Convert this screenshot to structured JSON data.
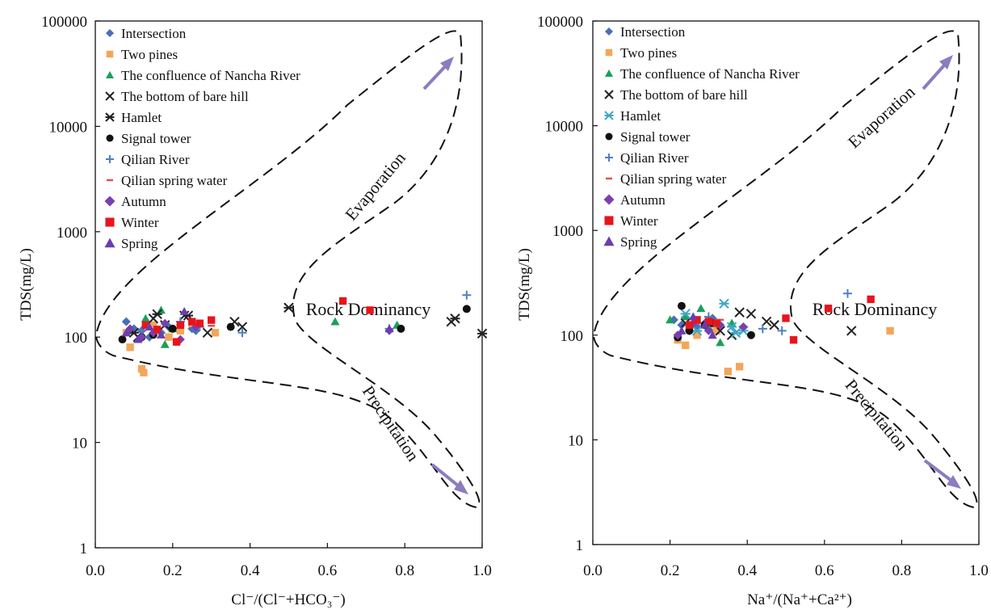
{
  "chart_data": [
    {
      "type": "scatter",
      "xlabel": "Cl⁻/(Cl⁻+HCO₃⁻)",
      "ylabel": "TDS(mg/L)",
      "xlim": [
        0,
        1
      ],
      "ylim": [
        1,
        100000
      ],
      "yscale": "log",
      "x_ticks": [
        "0.0",
        "0.2",
        "0.4",
        "0.6",
        "0.8",
        "1.0"
      ],
      "y_ticks": [
        "1",
        "10",
        "100",
        "1000",
        "10000",
        "100000"
      ],
      "grid": false,
      "legend_position": "top-left",
      "annotations": [
        "Evaporation",
        "Rock Dominancy",
        "Precipitation"
      ],
      "series": [
        {
          "name": "Intersection",
          "marker": "diamond",
          "color": "#4a6fb5",
          "points": [
            [
              0.08,
              140
            ],
            [
              0.1,
              120
            ],
            [
              0.12,
              115
            ],
            [
              0.14,
              100
            ],
            [
              0.17,
              110
            ],
            [
              0.19,
              125
            ],
            [
              0.22,
              130
            ],
            [
              0.25,
              120
            ],
            [
              0.26,
              115
            ]
          ]
        },
        {
          "name": "Two pines",
          "marker": "square",
          "color": "#f3a65a",
          "points": [
            [
              0.08,
              110
            ],
            [
              0.09,
              80
            ],
            [
              0.12,
              50
            ],
            [
              0.125,
              46
            ],
            [
              0.15,
              130
            ],
            [
              0.19,
              100
            ],
            [
              0.25,
              135
            ],
            [
              0.31,
              110
            ],
            [
              0.22,
              115
            ]
          ]
        },
        {
          "name": "The confluence of Nancha River",
          "marker": "triangle",
          "color": "#1aa05a",
          "points": [
            [
              0.09,
              115
            ],
            [
              0.13,
              150
            ],
            [
              0.17,
              180
            ],
            [
              0.18,
              85
            ],
            [
              0.2,
              120
            ],
            [
              0.62,
              140
            ],
            [
              0.78,
              130
            ]
          ]
        },
        {
          "name": "The bottom of bare hill",
          "marker": "x",
          "color": "#222222",
          "points": [
            [
              0.11,
              100
            ],
            [
              0.15,
              150
            ],
            [
              0.18,
              130
            ],
            [
              0.23,
              160
            ],
            [
              0.29,
              110
            ],
            [
              0.36,
              140
            ],
            [
              0.38,
              125
            ],
            [
              0.5,
              190
            ],
            [
              0.92,
              140
            ]
          ]
        },
        {
          "name": "Hamlet",
          "marker": "star",
          "color": "#222222",
          "points": [
            [
              0.1,
              110
            ],
            [
              0.16,
              165
            ],
            [
              0.24,
              160
            ],
            [
              0.5,
              190
            ],
            [
              0.93,
              150
            ],
            [
              1.0,
              108
            ]
          ]
        },
        {
          "name": "Signal tower",
          "marker": "circle",
          "color": "#111111",
          "points": [
            [
              0.07,
              95
            ],
            [
              0.12,
              100
            ],
            [
              0.15,
              105
            ],
            [
              0.2,
              120
            ],
            [
              0.35,
              125
            ],
            [
              0.79,
              120
            ],
            [
              0.96,
              185
            ]
          ]
        },
        {
          "name": "Qilian River",
          "marker": "plus",
          "color": "#4d7fc4",
          "points": [
            [
              0.12,
              115
            ],
            [
              0.22,
              140
            ],
            [
              0.27,
              125
            ],
            [
              0.38,
              110
            ],
            [
              0.76,
              120
            ],
            [
              0.96,
              250
            ]
          ]
        },
        {
          "name": "Qilian spring water",
          "marker": "dash",
          "color": "#e05050",
          "points": [
            [
              0.16,
              120
            ],
            [
              0.3,
              128
            ]
          ]
        },
        {
          "name": "Autumn",
          "marker": "diamond",
          "color": "#7a3fb0",
          "points": [
            [
              0.09,
              120
            ],
            [
              0.12,
              100
            ],
            [
              0.15,
              110
            ],
            [
              0.18,
              135
            ],
            [
              0.22,
              95
            ],
            [
              0.26,
              125
            ],
            [
              0.76,
              115
            ]
          ]
        },
        {
          "name": "Winter",
          "marker": "square",
          "color": "#e8141c",
          "points": [
            [
              0.13,
              130
            ],
            [
              0.16,
              118
            ],
            [
              0.21,
              90
            ],
            [
              0.22,
              130
            ],
            [
              0.25,
              140
            ],
            [
              0.27,
              135
            ],
            [
              0.3,
              145
            ],
            [
              0.64,
              220
            ],
            [
              0.71,
              180
            ]
          ]
        },
        {
          "name": "Spring",
          "marker": "triangle",
          "color": "#6a3eb0",
          "points": [
            [
              0.08,
              110
            ],
            [
              0.11,
              95
            ],
            [
              0.14,
              125
            ],
            [
              0.17,
              105
            ],
            [
              0.23,
              175
            ],
            [
              0.76,
              120
            ]
          ]
        }
      ]
    },
    {
      "type": "scatter",
      "xlabel": "Na⁺/(Na⁺+Ca²⁺)",
      "ylabel": "TDS(mg/L)",
      "xlim": [
        0,
        1
      ],
      "ylim": [
        1,
        100000
      ],
      "yscale": "log",
      "x_ticks": [
        "0.0",
        "0.2",
        "0.4",
        "0.6",
        "0.8",
        "1.0"
      ],
      "y_ticks": [
        "1",
        "10",
        "100",
        "1000",
        "10000",
        "100000"
      ],
      "grid": false,
      "legend_position": "top-left",
      "annotations": [
        "Evaporation",
        "Rock Dominancy",
        "Precipitation"
      ],
      "series": [
        {
          "name": "Intersection",
          "marker": "diamond",
          "color": "#4a6fb5",
          "points": [
            [
              0.21,
              140
            ],
            [
              0.23,
              125
            ],
            [
              0.25,
              110
            ],
            [
              0.27,
              120
            ],
            [
              0.29,
              130
            ],
            [
              0.31,
              145
            ]
          ]
        },
        {
          "name": "Two pines",
          "marker": "square",
          "color": "#f3a65a",
          "points": [
            [
              0.22,
              90
            ],
            [
              0.24,
              80
            ],
            [
              0.25,
              120
            ],
            [
              0.27,
              100
            ],
            [
              0.32,
              110
            ],
            [
              0.35,
              45
            ],
            [
              0.38,
              50
            ],
            [
              0.77,
              110
            ]
          ]
        },
        {
          "name": "The confluence of Nancha River",
          "marker": "triangle",
          "color": "#1aa05a",
          "points": [
            [
              0.2,
              140
            ],
            [
              0.24,
              150
            ],
            [
              0.28,
              180
            ],
            [
              0.3,
              120
            ],
            [
              0.33,
              85
            ],
            [
              0.36,
              130
            ]
          ]
        },
        {
          "name": "The bottom of bare hill",
          "marker": "x",
          "color": "#222222",
          "points": [
            [
              0.24,
              130
            ],
            [
              0.33,
              110
            ],
            [
              0.36,
              100
            ],
            [
              0.38,
              165
            ],
            [
              0.41,
              160
            ],
            [
              0.45,
              135
            ],
            [
              0.47,
              125
            ],
            [
              0.67,
              110
            ]
          ]
        },
        {
          "name": "Hamlet",
          "marker": "star",
          "color": "#3fa7c4",
          "points": [
            [
              0.24,
              160
            ],
            [
              0.27,
              110
            ],
            [
              0.31,
              130
            ],
            [
              0.34,
              200
            ],
            [
              0.36,
              120
            ],
            [
              0.37,
              105
            ],
            [
              0.39,
              110
            ]
          ]
        },
        {
          "name": "Signal tower",
          "marker": "circle",
          "color": "#111111",
          "points": [
            [
              0.23,
              190
            ],
            [
              0.22,
              95
            ],
            [
              0.25,
              110
            ],
            [
              0.29,
              125
            ],
            [
              0.41,
              100
            ],
            [
              0.31,
              130
            ]
          ]
        },
        {
          "name": "Qilian River",
          "marker": "plus",
          "color": "#4d7fc4",
          "points": [
            [
              0.3,
              150
            ],
            [
              0.44,
              115
            ],
            [
              0.49,
              110
            ],
            [
              0.66,
              250
            ]
          ]
        },
        {
          "name": "Qilian spring water",
          "marker": "dash",
          "color": "#e05050",
          "points": [
            [
              0.27,
              130
            ],
            [
              0.33,
              140
            ]
          ]
        },
        {
          "name": "Autumn",
          "marker": "diamond",
          "color": "#7a3fb0",
          "points": [
            [
              0.22,
              100
            ],
            [
              0.26,
              130
            ],
            [
              0.3,
              110
            ],
            [
              0.33,
              125
            ],
            [
              0.39,
              120
            ]
          ]
        },
        {
          "name": "Winter",
          "marker": "square",
          "color": "#e8141c",
          "points": [
            [
              0.25,
              125
            ],
            [
              0.27,
              140
            ],
            [
              0.3,
              135
            ],
            [
              0.32,
              130
            ],
            [
              0.5,
              145
            ],
            [
              0.52,
              90
            ],
            [
              0.61,
              180
            ],
            [
              0.72,
              220
            ]
          ]
        },
        {
          "name": "Spring",
          "marker": "triangle",
          "color": "#6a3eb0",
          "points": [
            [
              0.23,
              110
            ],
            [
              0.26,
              150
            ],
            [
              0.29,
              125
            ],
            [
              0.31,
              100
            ]
          ]
        }
      ]
    }
  ]
}
